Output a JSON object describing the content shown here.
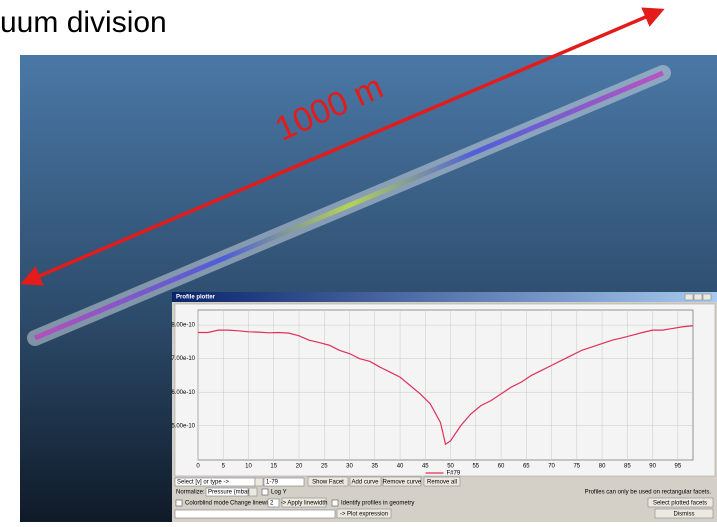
{
  "slide_title": "uum division",
  "annotation": "1000 m",
  "window": {
    "title": "Profile plotter"
  },
  "chart_data": {
    "type": "line",
    "x": [
      0,
      2,
      4,
      6,
      8,
      10,
      12,
      14,
      16,
      18,
      20,
      22,
      24,
      26,
      28,
      30,
      32,
      34,
      36,
      38,
      40,
      42,
      44,
      46,
      48,
      49,
      50,
      52,
      54,
      56,
      58,
      60,
      62,
      64,
      66,
      68,
      70,
      72,
      74,
      76,
      78,
      80,
      82,
      84,
      86,
      88,
      90,
      92,
      94,
      96,
      98
    ],
    "series": [
      {
        "name": "F#79",
        "color": "#e0305a",
        "values": [
          7.78e-10,
          7.78e-10,
          7.85e-10,
          7.85e-10,
          7.83e-10,
          7.8e-10,
          7.79e-10,
          7.77e-10,
          7.78e-10,
          7.76e-10,
          7.68e-10,
          7.55e-10,
          7.48e-10,
          7.4e-10,
          7.25e-10,
          7.15e-10,
          7e-10,
          6.92e-10,
          6.75e-10,
          6.6e-10,
          6.45e-10,
          6.2e-10,
          5.95e-10,
          5.65e-10,
          5.1e-10,
          4.45e-10,
          4.55e-10,
          5e-10,
          5.35e-10,
          5.6e-10,
          5.75e-10,
          5.95e-10,
          6.15e-10,
          6.3e-10,
          6.5e-10,
          6.65e-10,
          6.8e-10,
          6.95e-10,
          7.1e-10,
          7.25e-10,
          7.35e-10,
          7.45e-10,
          7.55e-10,
          7.62e-10,
          7.7e-10,
          7.78e-10,
          7.85e-10,
          7.85e-10,
          7.9e-10,
          7.95e-10,
          7.98e-10
        ]
      }
    ],
    "xlim": [
      0,
      98
    ],
    "xticks": [
      0,
      5,
      10,
      15,
      20,
      25,
      30,
      35,
      40,
      45,
      50,
      55,
      60,
      65,
      70,
      75,
      80,
      85,
      90,
      95
    ],
    "ylim": [
      3.98e-10,
      8.45e-10
    ],
    "yticks": [
      {
        "value": 5e-10,
        "label": "5.00e-10"
      },
      {
        "value": 6e-10,
        "label": "6.00e-10"
      },
      {
        "value": 7e-10,
        "label": "7.00e-10"
      },
      {
        "value": 8e-10,
        "label": "8.00e-10"
      }
    ],
    "grid": true
  },
  "controls": {
    "select_type": "Select [v] or type ->",
    "facet_input": "1-79",
    "show_facet": "Show Facet",
    "add_curve": "Add curve",
    "remove_curve": "Remove curve",
    "remove_all": "Remove all",
    "normalize_label": "Normalize:",
    "normalize_value": "Pressure (mbar)",
    "log_y": "Log Y",
    "note": "Profiles can only be used on rectangular facets.",
    "colorblind": "Colorblind mode",
    "linewidth_label": "Change linewidth:",
    "linewidth_value": "2",
    "apply_linewidth": "-> Apply linewidth",
    "identify": "Identify profiles in geometry",
    "select_plotted": "Select plotted facets",
    "plot_expression": "-> Plot expression",
    "dismiss": "Dismiss"
  }
}
